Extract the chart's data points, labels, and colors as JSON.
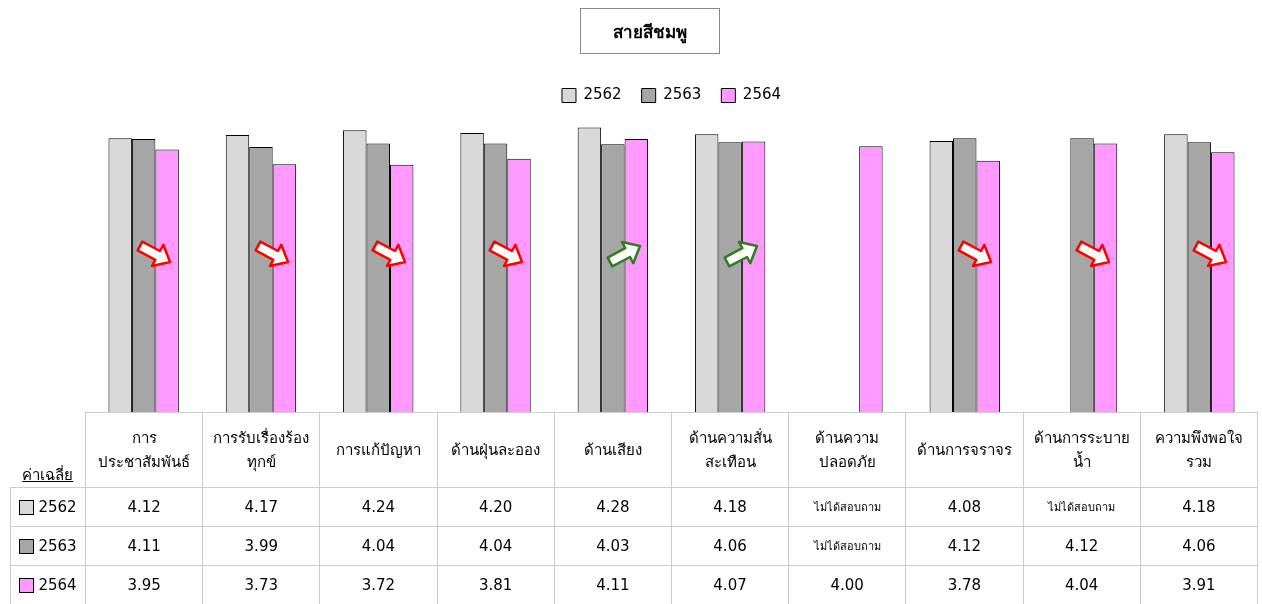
{
  "chart_data": {
    "type": "bar",
    "title": "สายสีชมพู",
    "categories": [
      "การประชาสัมพันธ์",
      "การรับเรื่องร้องทุกข์",
      "การแก้ปัญหา",
      "ด้านฝุ่นละออง",
      "ด้านเสียง",
      "ด้านความสั่นสะเทือน",
      "ด้านความปลอดภัย",
      "ด้านการจราจร",
      "ด้านการระบายน้ำ",
      "ความพึงพอใจรวม"
    ],
    "series": [
      {
        "name": "2562",
        "color": "#d9d9d9",
        "values": [
          4.12,
          4.17,
          4.24,
          4.2,
          4.28,
          4.18,
          null,
          4.08,
          null,
          4.18
        ],
        "value_labels": [
          "4.12",
          "4.17",
          "4.24",
          "4.20",
          "4.28",
          "4.18",
          "ไม่ได้สอบถาม",
          "4.08",
          "ไม่ได้สอบถาม",
          "4.18"
        ]
      },
      {
        "name": "2563",
        "color": "#a6a6a6",
        "values": [
          4.11,
          3.99,
          4.04,
          4.04,
          4.03,
          4.06,
          null,
          4.12,
          4.12,
          4.06
        ],
        "value_labels": [
          "4.11",
          "3.99",
          "4.04",
          "4.04",
          "4.03",
          "4.06",
          "ไม่ได้สอบถาม",
          "4.12",
          "4.12",
          "4.06"
        ]
      },
      {
        "name": "2564",
        "color": "#ff99ff",
        "values": [
          3.95,
          3.73,
          3.72,
          3.81,
          4.11,
          4.07,
          4.0,
          3.78,
          4.04,
          3.91
        ],
        "value_labels": [
          "3.95",
          "3.73",
          "3.72",
          "3.81",
          "4.11",
          "4.07",
          "4.00",
          "3.78",
          "4.04",
          "3.91"
        ]
      }
    ],
    "legend": "top",
    "annotations": [
      "ค่าเฉลี่ย"
    ]
  }
}
